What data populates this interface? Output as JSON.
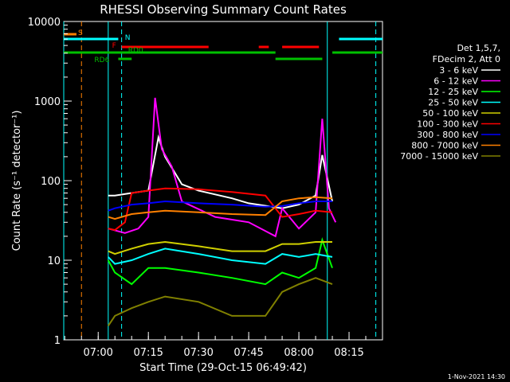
{
  "chart_data": {
    "type": "line",
    "title": "RHESSI Observing Summary Count Rates",
    "xlabel": "Start Time (29-Oct-15 06:49:42)",
    "ylabel": "Count Rate (s⁻¹ detector⁻¹)",
    "y_scale": "log",
    "ylim": [
      1,
      10000
    ],
    "xlim": [
      "06:49:42",
      "08:25:00"
    ],
    "x_ticks": [
      "07:00",
      "07:15",
      "07:30",
      "07:45",
      "08:00",
      "08:15"
    ],
    "y_ticks": [
      "1",
      "10",
      "100",
      "1000",
      "10000"
    ],
    "legend_header": [
      "Det 1,5,7,",
      "FDecim 2, Att 0"
    ],
    "footer_date": "1-Nov-2021 14:30",
    "series": [
      {
        "name": "3 - 6 keV",
        "color": "#ffffff",
        "x": [
          "06:63:00",
          "07:05",
          "07:10",
          "07:15",
          "07:18",
          "07:20",
          "07:25",
          "07:30",
          "07:40",
          "07:45",
          "07:55",
          "08:00",
          "08:05",
          "08:07",
          "08:10"
        ],
        "values": [
          65,
          65,
          70,
          75,
          350,
          200,
          90,
          75,
          60,
          52,
          45,
          50,
          65,
          210,
          55
        ]
      },
      {
        "name": "6 - 12 keV",
        "color": "#ff00ff",
        "x": [
          "07:03",
          "07:08",
          "07:12",
          "07:15",
          "07:17",
          "07:19",
          "07:22",
          "07:25",
          "07:35",
          "07:45",
          "07:53",
          "07:55",
          "08:00",
          "08:05",
          "08:07",
          "08:09",
          "08:11"
        ],
        "values": [
          25,
          22,
          25,
          35,
          1100,
          250,
          150,
          55,
          35,
          30,
          20,
          45,
          25,
          40,
          600,
          45,
          30
        ]
      },
      {
        "name": "12 - 25 keV",
        "color": "#00ff00",
        "x": [
          "07:03",
          "07:05",
          "07:10",
          "07:15",
          "07:20",
          "07:30",
          "07:40",
          "07:50",
          "07:55",
          "08:00",
          "08:05",
          "08:07",
          "08:10"
        ],
        "values": [
          10,
          7,
          5,
          8,
          8,
          7,
          6,
          5,
          7,
          6,
          8,
          18,
          8
        ]
      },
      {
        "name": "25 - 50 keV",
        "color": "#00ffff",
        "x": [
          "07:03",
          "07:05",
          "07:10",
          "07:15",
          "07:20",
          "07:30",
          "07:40",
          "07:50",
          "07:55",
          "08:00",
          "08:05",
          "08:10"
        ],
        "values": [
          11,
          9,
          10,
          12,
          14,
          12,
          10,
          9,
          12,
          11,
          12,
          11
        ]
      },
      {
        "name": "50 - 100 keV",
        "color": "#d0d000",
        "x": [
          "07:03",
          "07:05",
          "07:10",
          "07:15",
          "07:20",
          "07:30",
          "07:40",
          "07:50",
          "07:55",
          "08:00",
          "08:05",
          "08:10"
        ],
        "values": [
          13,
          12,
          14,
          16,
          17,
          15,
          13,
          13,
          16,
          16,
          17,
          17
        ]
      },
      {
        "name": "100 - 300 keV",
        "color": "#ff0000",
        "x": [
          "07:03",
          "07:05",
          "07:08",
          "07:10",
          "07:15",
          "07:20",
          "07:30",
          "07:40",
          "07:50",
          "07:55",
          "08:00",
          "08:05",
          "08:10"
        ],
        "values": [
          25,
          24,
          30,
          70,
          75,
          80,
          78,
          72,
          65,
          35,
          38,
          42,
          40
        ]
      },
      {
        "name": "300 - 800 keV",
        "color": "#0000ff",
        "x": [
          "07:03",
          "07:05",
          "07:10",
          "07:15",
          "07:20",
          "07:30",
          "07:40",
          "07:50",
          "07:55",
          "08:00",
          "08:05",
          "08:10"
        ],
        "values": [
          42,
          45,
          50,
          52,
          55,
          52,
          50,
          47,
          48,
          52,
          55,
          55
        ]
      },
      {
        "name": "800 - 7000 keV",
        "color": "#ff8000",
        "x": [
          "07:03",
          "07:05",
          "07:10",
          "07:15",
          "07:20",
          "07:30",
          "07:40",
          "07:50",
          "07:55",
          "08:00",
          "08:05",
          "08:10"
        ],
        "values": [
          35,
          33,
          38,
          40,
          42,
          40,
          38,
          37,
          55,
          60,
          62,
          60
        ]
      },
      {
        "name": "7000 - 15000 keV",
        "color": "#808000",
        "x": [
          "07:03",
          "07:05",
          "07:10",
          "07:15",
          "07:20",
          "07:30",
          "07:40",
          "07:50",
          "07:55",
          "08:00",
          "08:05",
          "08:10"
        ],
        "values": [
          1.5,
          2,
          2.5,
          3,
          3.5,
          3,
          2,
          2,
          4,
          5,
          6,
          5
        ]
      }
    ],
    "flag_bars": [
      {
        "label": "S",
        "color": "#ff8000",
        "segments": [
          [
            "06:49:42",
            "06:53:30"
          ]
        ]
      },
      {
        "label": "N",
        "color": "#00ffff",
        "segments": [
          [
            "06:49:42",
            "07:06:00"
          ],
          [
            "08:12:00",
            "08:25:00"
          ]
        ]
      },
      {
        "label": "F",
        "color": "#ff0000",
        "segments": [
          [
            "07:07:00",
            "07:33:00"
          ],
          [
            "07:48:00",
            "07:51:00"
          ],
          [
            "07:55:00",
            "08:06:00"
          ]
        ]
      },
      {
        "label": "RD0",
        "color": "#00c000",
        "segments": [
          [
            "06:49:42",
            "07:53:00"
          ],
          [
            "08:10:00",
            "08:25:00"
          ]
        ]
      },
      {
        "label": "RD6",
        "color": "#00c000",
        "segments": [
          [
            "07:06:00",
            "07:10:00"
          ],
          [
            "07:53:00",
            "08:07:00"
          ]
        ]
      }
    ],
    "vlines": [
      {
        "x": "06:49:42",
        "color": "#00ffff",
        "style": "solid"
      },
      {
        "x": "06:55:00",
        "color": "#ff8000",
        "style": "dashed"
      },
      {
        "x": "07:03:00",
        "color": "#00ffff",
        "style": "solid"
      },
      {
        "x": "07:07:00",
        "color": "#00ffff",
        "style": "dashed"
      },
      {
        "x": "08:08:30",
        "color": "#00ffff",
        "style": "solid"
      },
      {
        "x": "08:23:00",
        "color": "#00ffff",
        "style": "dashed"
      }
    ]
  }
}
